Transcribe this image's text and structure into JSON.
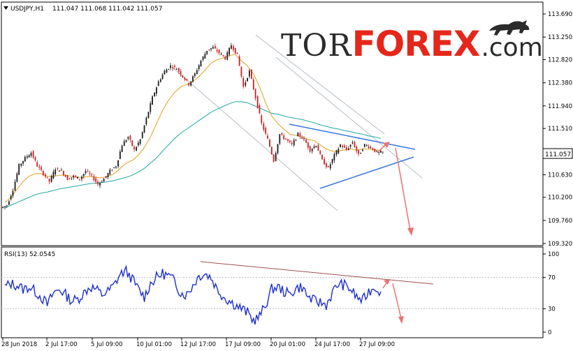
{
  "chart_header": {
    "icon": "triangle-down-icon",
    "symbol_timeframe": "USDJPY,H1",
    "ohlc": "111.047 111.068 111.042 111.057"
  },
  "brand": {
    "tor": "TOR",
    "forex": "FOREX",
    "com": ".com",
    "icon": "bull-icon"
  },
  "current_price": "111.057",
  "rsi_header": "RSI(13) 52.0545",
  "colors": {
    "candle_up": "#1a1a1a",
    "candle_down": "#c81e1e",
    "ma_fast": "#e0a020",
    "ma_slow": "#20a8a0",
    "channel": "#b4bcc4",
    "triangle": "#3a78e0",
    "forecast_arrow": "#f07070",
    "rsi_line": "#1c2ecc",
    "rsi_trend": "#a05050",
    "brand_red": "#e5271b"
  },
  "chart_data": [
    {
      "type": "candlestick",
      "title": "",
      "y_axis_labels": [
        "113.690",
        "113.250",
        "112.820",
        "112.380",
        "111.940",
        "111.510",
        "111.070",
        "110.630",
        "110.200",
        "109.760",
        "109.320"
      ],
      "ylim": [
        109.3,
        113.9
      ],
      "x_axis_labels": [
        "28 Jun 2018",
        "2 Jul 17:00",
        "5 Jul 09:00",
        "10 Jul 01:00",
        "12 Jul 17:00",
        "17 Jul 09:00",
        "20 Jul 01:00",
        "24 Jul 17:00",
        "27 Jul 09:00"
      ],
      "close": [
        110.05,
        110.35,
        110.8,
        110.95,
        111.05,
        110.8,
        110.65,
        110.5,
        110.75,
        110.7,
        110.55,
        110.6,
        110.55,
        110.7,
        110.6,
        110.45,
        110.55,
        110.7,
        110.8,
        111.2,
        111.35,
        111.1,
        111.3,
        111.7,
        112.1,
        112.4,
        112.6,
        112.7,
        112.65,
        112.5,
        112.35,
        112.55,
        112.8,
        113.0,
        113.05,
        112.95,
        112.85,
        113.1,
        112.9,
        112.3,
        112.6,
        112.1,
        111.6,
        111.3,
        110.9,
        111.4,
        111.3,
        111.2,
        111.4,
        111.3,
        111.1,
        111.2,
        110.9,
        110.75,
        111.0,
        111.2,
        111.1,
        111.25,
        111.0,
        111.2,
        111.15,
        111.05,
        111.057
      ],
      "ma_fast": [
        110.1,
        110.2,
        110.35,
        110.5,
        110.6,
        110.65,
        110.65,
        110.6,
        110.6,
        110.62,
        110.62,
        110.6,
        110.58,
        110.58,
        110.6,
        110.58,
        110.57,
        110.6,
        110.65,
        110.75,
        110.85,
        110.9,
        111.0,
        111.15,
        111.35,
        111.6,
        111.85,
        112.05,
        112.2,
        112.3,
        112.35,
        112.4,
        112.5,
        112.62,
        112.75,
        112.82,
        112.85,
        112.9,
        112.92,
        112.8,
        112.7,
        112.55,
        112.3,
        112.0,
        111.75,
        111.6,
        111.5,
        111.4,
        111.38,
        111.35,
        111.3,
        111.28,
        111.2,
        111.12,
        111.08,
        111.08,
        111.1,
        111.12,
        111.1,
        111.12,
        111.12,
        111.1,
        111.1
      ],
      "ma_slow": [
        110.0,
        110.05,
        110.1,
        110.15,
        110.2,
        110.25,
        110.28,
        110.3,
        110.33,
        110.36,
        110.38,
        110.4,
        110.42,
        110.44,
        110.46,
        110.47,
        110.48,
        110.5,
        110.52,
        110.55,
        110.58,
        110.62,
        110.68,
        110.75,
        110.85,
        110.95,
        111.08,
        111.2,
        111.32,
        111.42,
        111.5,
        111.58,
        111.66,
        111.74,
        111.82,
        111.88,
        111.93,
        111.98,
        112.02,
        112.02,
        112.0,
        111.95,
        111.9,
        111.85,
        111.8,
        111.78,
        111.75,
        111.72,
        111.7,
        111.68,
        111.65,
        111.62,
        111.58,
        111.55,
        111.52,
        111.5,
        111.47,
        111.45,
        111.42,
        111.4,
        111.37,
        111.35,
        111.32
      ]
    },
    {
      "type": "line",
      "title": "",
      "name": "RSI(13)",
      "y_axis_labels": [
        "100",
        "70",
        "30",
        "0"
      ],
      "ylim": [
        0,
        100
      ],
      "levels": [
        70,
        30
      ],
      "values": [
        58,
        62,
        60,
        55,
        58,
        52,
        45,
        35,
        50,
        55,
        48,
        40,
        42,
        50,
        58,
        55,
        48,
        52,
        60,
        74,
        78,
        68,
        55,
        45,
        62,
        70,
        75,
        72,
        65,
        50,
        48,
        60,
        72,
        75,
        70,
        55,
        46,
        40,
        35,
        30,
        25,
        15,
        20,
        35,
        55,
        58,
        52,
        48,
        56,
        58,
        45,
        40,
        38,
        35,
        50,
        62,
        60,
        55,
        45,
        40,
        52,
        58,
        52
      ]
    }
  ]
}
